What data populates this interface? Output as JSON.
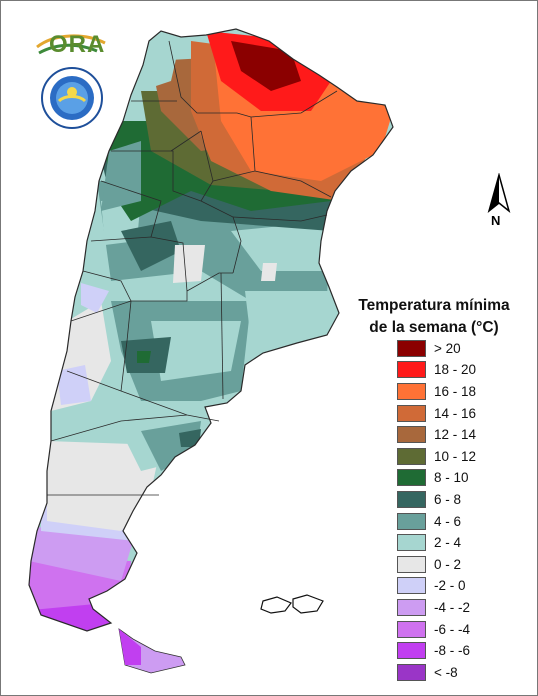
{
  "logos": {
    "ora_text": "ORA",
    "smn_seal_text": "SERVICIO METEOROLOGICO NACIONAL · ARGENTINA"
  },
  "north_arrow": {
    "label": "N"
  },
  "legend": {
    "title_line1": "Temperatura mínima",
    "title_line2": "de la semana (°C)",
    "items": [
      {
        "label": "> 20",
        "color": "#8b0000"
      },
      {
        "label": "18 - 20",
        "color": "#ff1a1a"
      },
      {
        "label": "16 - 18",
        "color": "#ff7236"
      },
      {
        "label": "14 - 16",
        "color": "#d06a37"
      },
      {
        "label": "12 - 14",
        "color": "#a8683c"
      },
      {
        "label": "10 - 12",
        "color": "#5e6b34"
      },
      {
        "label": "8 - 10",
        "color": "#1f6b34"
      },
      {
        "label": "6 - 8",
        "color": "#356660"
      },
      {
        "label": "4 - 6",
        "color": "#69a09b"
      },
      {
        "label": "2 - 4",
        "color": "#a6d6d0"
      },
      {
        "label": "0 - 2",
        "color": "#e7e7e7"
      },
      {
        "label": "-2 - 0",
        "color": "#cfd0f8"
      },
      {
        "label": "-4 - -2",
        "color": "#cd9cf2"
      },
      {
        "label": "-6 - -4",
        "color": "#cf72ef"
      },
      {
        "label": "-8 - -6",
        "color": "#c13ff0"
      },
      {
        "label": "< -8",
        "color": "#9a35c7"
      }
    ]
  }
}
